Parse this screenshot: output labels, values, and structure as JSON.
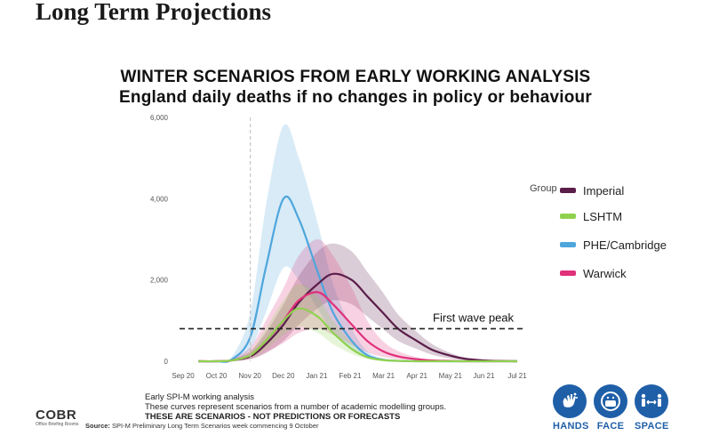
{
  "page": {
    "heading": "Long Term Projections"
  },
  "chart_data": {
    "type": "line",
    "title": "WINTER SCENARIOS FROM EARLY WORKING ANALYSIS",
    "subtitle": "England daily deaths if no changes in policy or behaviour",
    "xlabel": "",
    "ylabel": "",
    "x_ticks": [
      "Sep 20",
      "Oct 20",
      "Nov 20",
      "Dec 20",
      "Jan 21",
      "Feb 21",
      "Mar 21",
      "Apr 21",
      "May 21",
      "Jun 21",
      "Jul 21"
    ],
    "y_ticks": [
      "0",
      "2,000",
      "4,000",
      "6,000"
    ],
    "ylim": [
      0,
      6000
    ],
    "grid": false,
    "legend": {
      "title": "Group",
      "position": "right"
    },
    "x": [
      "2020-09-15",
      "2020-10-01",
      "2020-10-15",
      "2020-11-01",
      "2020-11-15",
      "2020-12-01",
      "2020-12-15",
      "2021-01-01",
      "2021-01-15",
      "2021-02-01",
      "2021-02-15",
      "2021-03-01",
      "2021-03-15",
      "2021-04-01",
      "2021-04-15",
      "2021-05-01",
      "2021-05-15",
      "2021-06-01",
      "2021-06-15",
      "2021-07-01"
    ],
    "series": [
      {
        "name": "Imperial",
        "color": "#5a1d4a",
        "values": [
          0,
          0,
          20,
          120,
          420,
          900,
          1450,
          1900,
          2150,
          2000,
          1600,
          1200,
          800,
          500,
          280,
          140,
          60,
          20,
          8,
          0
        ],
        "upper": [
          0,
          0,
          50,
          250,
          700,
          1400,
          2100,
          2700,
          2900,
          2700,
          2200,
          1700,
          1150,
          720,
          420,
          210,
          90,
          30,
          10,
          0
        ],
        "lower": [
          0,
          0,
          5,
          50,
          200,
          500,
          900,
          1300,
          1500,
          1400,
          1100,
          800,
          500,
          300,
          160,
          70,
          30,
          10,
          4,
          0
        ]
      },
      {
        "name": "LSHTM",
        "color": "#8fd14f",
        "values": [
          0,
          0,
          20,
          150,
          500,
          1000,
          1300,
          1100,
          700,
          300,
          100,
          30,
          10,
          0,
          0,
          0,
          0,
          0,
          0,
          0
        ],
        "upper": [
          0,
          0,
          40,
          250,
          800,
          1500,
          1900,
          1600,
          1000,
          450,
          150,
          50,
          15,
          0,
          0,
          0,
          0,
          0,
          0,
          0
        ],
        "lower": [
          0,
          0,
          5,
          80,
          300,
          650,
          850,
          700,
          420,
          180,
          60,
          15,
          5,
          0,
          0,
          0,
          0,
          0,
          0,
          0
        ]
      },
      {
        "name": "PHE/Cambridge",
        "color": "#4ea6dc",
        "values": [
          0,
          0,
          40,
          600,
          2300,
          4000,
          3500,
          2200,
          1200,
          500,
          150,
          40,
          10,
          0,
          0,
          0,
          0,
          0,
          0,
          0
        ],
        "upper": [
          0,
          0,
          100,
          1200,
          3800,
          5800,
          5000,
          3400,
          1900,
          800,
          250,
          70,
          15,
          0,
          0,
          0,
          0,
          0,
          0,
          0
        ],
        "lower": [
          0,
          0,
          10,
          300,
          1200,
          2300,
          2000,
          1300,
          700,
          280,
          80,
          20,
          5,
          0,
          0,
          0,
          0,
          0,
          0,
          0
        ]
      },
      {
        "name": "Warwick",
        "color": "#e0307a",
        "values": [
          0,
          0,
          20,
          150,
          500,
          1000,
          1500,
          1700,
          1400,
          900,
          500,
          250,
          120,
          50,
          20,
          8,
          0,
          0,
          0,
          0
        ],
        "upper": [
          0,
          0,
          60,
          350,
          1000,
          1800,
          2600,
          3000,
          2600,
          1800,
          1000,
          500,
          250,
          100,
          40,
          15,
          0,
          0,
          0,
          0
        ],
        "lower": [
          0,
          0,
          5,
          60,
          220,
          450,
          700,
          800,
          650,
          400,
          220,
          110,
          50,
          20,
          8,
          3,
          0,
          0,
          0,
          0
        ]
      }
    ],
    "annotations": [
      {
        "text": "First wave peak",
        "y": 800
      }
    ]
  },
  "footer": {
    "note1": "Early SPI-M working analysis",
    "note2": "These curves represent scenarios from a number of academic modelling groups.",
    "note3": "THESE ARE SCENARIOS  - NOT PREDICTIONS OR FORECASTS",
    "source_label": "Source:",
    "source_text": "SPI-M Preliminary Long Term Scenarios week commencing 9 October"
  },
  "branding": {
    "cobr": "COBR",
    "cobr_sub": "Office Briefing Rooms",
    "hands": "HANDS",
    "face": "FACE",
    "space": "SPACE",
    "brand_color": "#1f5fa8"
  }
}
